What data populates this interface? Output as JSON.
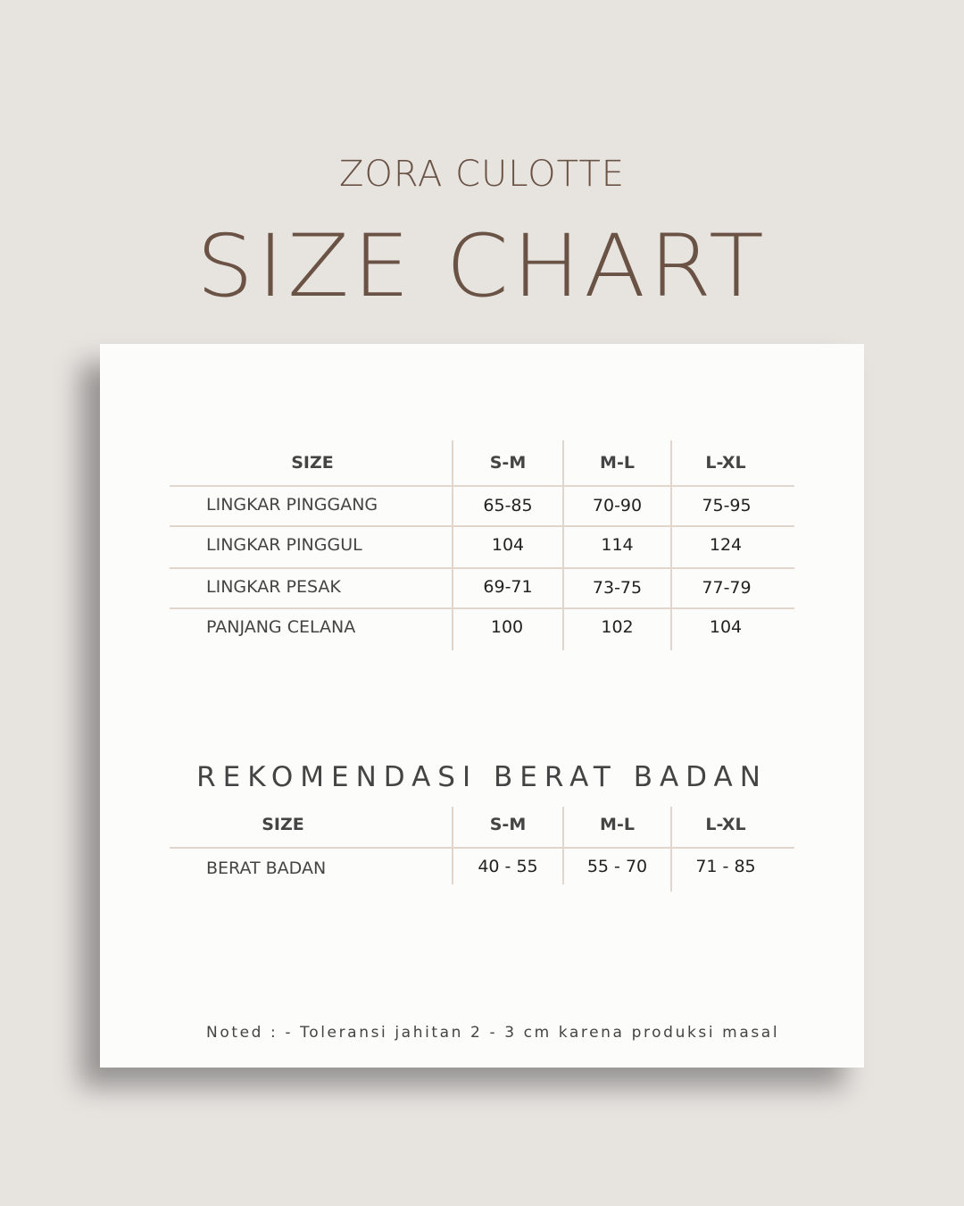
{
  "header": {
    "subtitle": "ZORA CULOTTE",
    "title": "SIZE CHART"
  },
  "size_table": {
    "columns": [
      "SIZE",
      "S-M",
      "M-L",
      "L-XL"
    ],
    "rows": [
      {
        "label": "LINGKAR PINGGANG",
        "values": [
          "65-85",
          "70-90",
          "75-95"
        ]
      },
      {
        "label": "LINGKAR PINGGUL",
        "values": [
          "104",
          "114",
          "124"
        ]
      },
      {
        "label": "LINGKAR PESAK",
        "values": [
          "69-71",
          "73-75",
          "77-79"
        ]
      },
      {
        "label": "PANJANG CELANA",
        "values": [
          "100",
          "102",
          "104"
        ]
      }
    ]
  },
  "weight_table": {
    "title": "REKOMENDASI BERAT BADAN",
    "columns": [
      "SIZE",
      "S-M",
      "M-L",
      "L-XL"
    ],
    "rows": [
      {
        "label": "BERAT BADAN",
        "values": [
          "40 - 55",
          "55 - 70",
          "71 - 85"
        ]
      }
    ]
  },
  "note": "Noted :  - Toleransi jahitan 2 - 3 cm karena produksi masal",
  "colors": {
    "background": "#e7e4e0",
    "title": "#6a5245",
    "grid": "#e2d6cc",
    "card": "#fcfcfb"
  }
}
